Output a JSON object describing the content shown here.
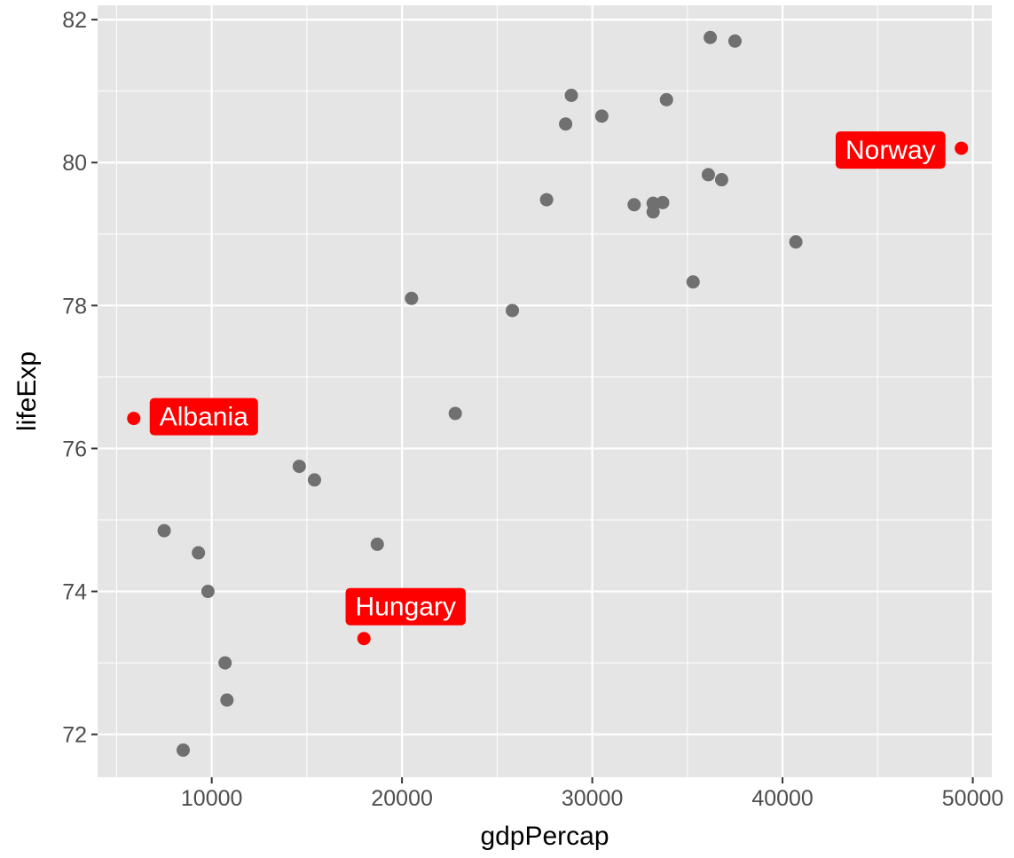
{
  "chart_data": {
    "type": "scatter",
    "title": "",
    "xlabel": "gdpPercap",
    "ylabel": "lifeExp",
    "xlim": [
      4000,
      51000
    ],
    "ylim": [
      71.4,
      82.2
    ],
    "xticks": [
      10000,
      20000,
      30000,
      40000,
      50000
    ],
    "yticks": [
      72,
      74,
      76,
      78,
      80,
      82
    ],
    "x_tick_labels": [
      "10000",
      "20000",
      "30000",
      "40000",
      "50000"
    ],
    "y_tick_labels": [
      "72",
      "74",
      "76",
      "78",
      "80",
      "82"
    ],
    "grid": true,
    "colors": {
      "panel": "#e5e5e5",
      "grid": "#ffffff",
      "point": "#707070",
      "highlight": "#ff0000",
      "label_text": "#ffffff"
    },
    "points": [
      {
        "x": 36200,
        "y": 81.75
      },
      {
        "x": 37500,
        "y": 81.7
      },
      {
        "x": 28900,
        "y": 80.94
      },
      {
        "x": 33900,
        "y": 80.88
      },
      {
        "x": 30500,
        "y": 80.65
      },
      {
        "x": 28600,
        "y": 80.54
      },
      {
        "x": 36100,
        "y": 79.83
      },
      {
        "x": 36800,
        "y": 79.76
      },
      {
        "x": 27600,
        "y": 79.48
      },
      {
        "x": 32200,
        "y": 79.41
      },
      {
        "x": 33200,
        "y": 79.43
      },
      {
        "x": 33700,
        "y": 79.44
      },
      {
        "x": 33200,
        "y": 79.31
      },
      {
        "x": 40700,
        "y": 78.89
      },
      {
        "x": 35300,
        "y": 78.33
      },
      {
        "x": 20500,
        "y": 78.1
      },
      {
        "x": 25800,
        "y": 77.93
      },
      {
        "x": 22800,
        "y": 76.49
      },
      {
        "x": 14600,
        "y": 75.75
      },
      {
        "x": 15400,
        "y": 75.56
      },
      {
        "x": 7500,
        "y": 74.85
      },
      {
        "x": 18700,
        "y": 74.66
      },
      {
        "x": 9300,
        "y": 74.54
      },
      {
        "x": 9800,
        "y": 74.0
      },
      {
        "x": 10700,
        "y": 73.0
      },
      {
        "x": 10800,
        "y": 72.48
      },
      {
        "x": 8500,
        "y": 71.78
      }
    ],
    "highlighted": [
      {
        "label": "Norway",
        "x": 49400,
        "y": 80.2
      },
      {
        "label": "Albania",
        "x": 5900,
        "y": 76.42
      },
      {
        "label": "Hungary",
        "x": 18000,
        "y": 73.34
      }
    ]
  }
}
